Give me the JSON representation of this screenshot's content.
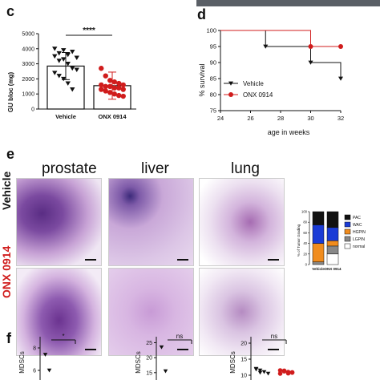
{
  "panels": {
    "c": "c",
    "d": "d",
    "e": "e",
    "f": "f"
  },
  "histology": {
    "columns": [
      "prostate",
      "liver",
      "lung"
    ],
    "rows": [
      {
        "label": "Vehicle",
        "color": "#111111"
      },
      {
        "label": "ONX 0914",
        "color": "#d01c1c"
      }
    ]
  },
  "chart_data": [
    {
      "type": "bar",
      "panel": "c",
      "ylabel": "GU bloc (mg)",
      "yticks": [
        "0",
        "1000",
        "2000",
        "3000",
        "4000",
        "5000"
      ],
      "ylim": [
        0,
        5000
      ],
      "categories": [
        "Vehicle",
        "ONX 0914"
      ],
      "values": [
        2850,
        1550
      ],
      "colors": [
        "#111111",
        "#d01c1c"
      ],
      "significance": "****",
      "points": [
        [
          4000,
          3700,
          3900,
          3600,
          3800,
          3400,
          3500,
          3200,
          3300,
          3000,
          2700,
          2600,
          2400,
          2200,
          2000,
          1700,
          1300
        ],
        [
          2700,
          2200,
          1900,
          1800,
          1700,
          1600,
          1600,
          1500,
          1500,
          1400,
          1400,
          1300,
          1300,
          1200,
          1100,
          1000,
          900,
          850
        ]
      ]
    },
    {
      "type": "line",
      "panel": "d",
      "xlabel": "age in weeks",
      "ylabel": "% survival",
      "xticks": [
        "24",
        "26",
        "28",
        "30",
        "32"
      ],
      "yticks": [
        "75",
        "80",
        "85",
        "90",
        "95",
        "100"
      ],
      "xlim": [
        24,
        32
      ],
      "ylim": [
        75,
        100
      ],
      "series": [
        {
          "name": "Vehicle",
          "color": "#111111",
          "marker": "triangle-down",
          "x": [
            24,
            27,
            27,
            30,
            30,
            32,
            32
          ],
          "y": [
            100,
            100,
            95,
            95,
            90,
            90,
            85
          ]
        },
        {
          "name": "ONX 0914",
          "color": "#d01c1c",
          "marker": "circle",
          "x": [
            24,
            30,
            30,
            32
          ],
          "y": [
            100,
            100,
            95,
            95
          ]
        }
      ],
      "markers": [
        {
          "series": 0,
          "x": 27,
          "y": 95
        },
        {
          "series": 0,
          "x": 30,
          "y": 90
        },
        {
          "series": 0,
          "x": 32,
          "y": 85
        },
        {
          "series": 1,
          "x": 30,
          "y": 95
        },
        {
          "series": 1,
          "x": 32,
          "y": 95
        }
      ]
    },
    {
      "type": "bar",
      "subtype": "stacked",
      "panel": "e-grading",
      "ylabel": "% of Tumor Grading",
      "yticks": [
        "0",
        "20",
        "40",
        "60",
        "80",
        "100"
      ],
      "ylim": [
        0,
        100
      ],
      "categories": [
        "Vehicle",
        "ONX 0914"
      ],
      "series": [
        {
          "name": "normal",
          "color": "#ffffff",
          "values": [
            0,
            20
          ]
        },
        {
          "name": "LGPIN",
          "color": "#888888",
          "values": [
            5,
            15
          ]
        },
        {
          "name": "HGPIN",
          "color": "#f08c1e",
          "values": [
            35,
            10
          ]
        },
        {
          "name": "WAC",
          "color": "#1a3bd6",
          "values": [
            35,
            25
          ]
        },
        {
          "name": "PAC",
          "color": "#111111",
          "values": [
            25,
            30
          ]
        }
      ]
    },
    {
      "type": "scatter",
      "panel": "f1",
      "ylabel": "MDSCs",
      "yticks": [
        "6",
        "8"
      ],
      "significance": "*",
      "series": [
        {
          "name": "",
          "color": "#111111",
          "x": [
            0,
            0
          ],
          "y": [
            7.4,
            6.0
          ]
        }
      ]
    },
    {
      "type": "scatter",
      "panel": "f2",
      "ylabel": "MDSCs",
      "yticks": [
        "15",
        "20",
        "25"
      ],
      "significance": "ns",
      "series": [
        {
          "name": "",
          "color": "#111111",
          "x": [
            0,
            0
          ],
          "y": [
            23.5,
            15.5
          ]
        }
      ]
    },
    {
      "type": "scatter",
      "panel": "f3",
      "ylabel": "MDSCs",
      "yticks": [
        "10",
        "15",
        "20"
      ],
      "significance": "ns",
      "series": [
        {
          "name": "",
          "color": "#111111",
          "x": [
            0,
            0,
            0,
            0,
            0,
            0
          ],
          "y": [
            12,
            11.5,
            11,
            10.5,
            11.8,
            10.8
          ]
        },
        {
          "name": "",
          "color": "#d01c1c",
          "x": [
            1,
            1,
            1,
            1,
            1,
            1,
            1,
            1
          ],
          "y": [
            11.5,
            11.2,
            11,
            10.8,
            10.5,
            11.4,
            10.6,
            10.9
          ]
        }
      ]
    }
  ]
}
